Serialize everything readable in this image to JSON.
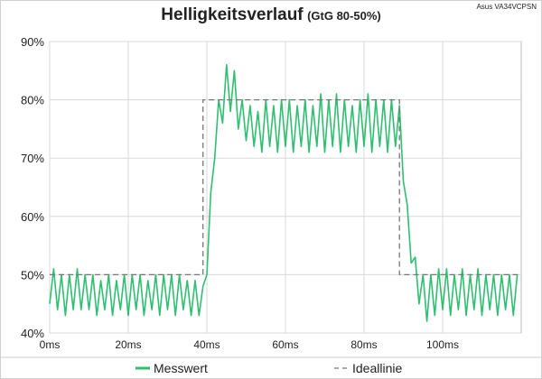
{
  "chart_data": {
    "type": "line",
    "title": "Helligkeitsverlauf",
    "subtitle": "(GtG 80-50%)",
    "annotation": "Asus VA34VCPSN",
    "xlim": [
      0,
      120
    ],
    "ylim": [
      40,
      90
    ],
    "xticks": [
      {
        "value": 0,
        "label": "0ms"
      },
      {
        "value": 20,
        "label": "20ms"
      },
      {
        "value": 40,
        "label": "40ms"
      },
      {
        "value": 60,
        "label": "60ms"
      },
      {
        "value": 80,
        "label": "80ms"
      },
      {
        "value": 100,
        "label": "100ms"
      }
    ],
    "yticks": [
      {
        "value": 40,
        "label": "40%"
      },
      {
        "value": 50,
        "label": "50%"
      },
      {
        "value": 60,
        "label": "60%"
      },
      {
        "value": 70,
        "label": "70%"
      },
      {
        "value": 80,
        "label": "80%"
      },
      {
        "value": 90,
        "label": "90%"
      }
    ],
    "grid": true,
    "legend": "bottom",
    "series": [
      {
        "name": "Messwert",
        "color": "#2fbf71",
        "dash": false,
        "x": [
          0,
          1,
          2,
          3,
          4,
          5,
          6,
          7,
          8,
          9,
          10,
          11,
          12,
          13,
          14,
          15,
          16,
          17,
          18,
          19,
          20,
          21,
          22,
          23,
          24,
          25,
          26,
          27,
          28,
          29,
          30,
          31,
          32,
          33,
          34,
          35,
          36,
          37,
          38,
          39,
          40,
          41,
          42,
          43,
          44,
          45,
          46,
          47,
          48,
          49,
          50,
          51,
          52,
          53,
          54,
          55,
          56,
          57,
          58,
          59,
          60,
          61,
          62,
          63,
          64,
          65,
          66,
          67,
          68,
          69,
          70,
          71,
          72,
          73,
          74,
          75,
          76,
          77,
          78,
          79,
          80,
          81,
          82,
          83,
          84,
          85,
          86,
          87,
          88,
          89,
          90,
          91,
          92,
          93,
          94,
          95,
          96,
          97,
          98,
          99,
          100,
          101,
          102,
          103,
          104,
          105,
          106,
          107,
          108,
          109,
          110,
          111,
          112,
          113,
          114,
          115,
          116,
          117,
          118,
          119
        ],
        "values": [
          45,
          51,
          44,
          50,
          43,
          50,
          44,
          51,
          44,
          50,
          44,
          50,
          43,
          49,
          44,
          50,
          43,
          49,
          44,
          50,
          43,
          50,
          44,
          50,
          43,
          49,
          44,
          50,
          43,
          50,
          44,
          50,
          43,
          50,
          44,
          49,
          43,
          49,
          43,
          48,
          50,
          64,
          70,
          80,
          76,
          86,
          78,
          85,
          75,
          80,
          73,
          79,
          72,
          78,
          71,
          80,
          72,
          79,
          71,
          80,
          72,
          80,
          71,
          79,
          72,
          80,
          71,
          79,
          72,
          81,
          71,
          80,
          72,
          81,
          71,
          80,
          72,
          79,
          71,
          80,
          72,
          81,
          71,
          80,
          72,
          80,
          71,
          80,
          72,
          79,
          66,
          62,
          52,
          53,
          45,
          50,
          42,
          50,
          43,
          51,
          44,
          51,
          43,
          50,
          44,
          51,
          43,
          50,
          44,
          51,
          43,
          50,
          44,
          50,
          43,
          50,
          44,
          50,
          43,
          50
        ]
      },
      {
        "name": "Ideallinie",
        "color": "#777777",
        "dash": true,
        "x": [
          0,
          39,
          39,
          89,
          89,
          120
        ],
        "values": [
          50,
          50,
          80,
          80,
          50,
          50
        ]
      }
    ]
  }
}
